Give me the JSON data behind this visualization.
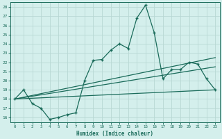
{
  "xlabel": "Humidex (Indice chaleur)",
  "xlim": [
    -0.5,
    23.5
  ],
  "ylim": [
    15.5,
    28.5
  ],
  "yticks": [
    16,
    17,
    18,
    19,
    20,
    21,
    22,
    23,
    24,
    25,
    26,
    27,
    28
  ],
  "xticks": [
    0,
    1,
    2,
    3,
    4,
    5,
    6,
    7,
    8,
    9,
    10,
    11,
    12,
    13,
    14,
    15,
    16,
    17,
    18,
    19,
    20,
    21,
    22,
    23
  ],
  "bg_color": "#d4efec",
  "line_color": "#1a6b5a",
  "grid_color": "#b8d8d4",
  "series_main": {
    "x": [
      0,
      1,
      2,
      3,
      4,
      5,
      6,
      7,
      8,
      9,
      10,
      11,
      12,
      13,
      14,
      15,
      16,
      17,
      18,
      19,
      20,
      21,
      22,
      23
    ],
    "y": [
      18.0,
      19.0,
      17.5,
      17.0,
      15.8,
      16.0,
      16.3,
      16.5,
      20.0,
      22.2,
      22.3,
      23.3,
      24.0,
      23.5,
      26.8,
      28.2,
      25.2,
      20.2,
      21.2,
      21.2,
      22.0,
      21.8,
      20.2,
      19.0
    ]
  },
  "series_line1": {
    "x": [
      0,
      23
    ],
    "y": [
      18.0,
      19.0
    ]
  },
  "series_line2": {
    "x": [
      0,
      23
    ],
    "y": [
      18.0,
      21.5
    ]
  },
  "series_line3": {
    "x": [
      0,
      23
    ],
    "y": [
      18.0,
      22.5
    ]
  }
}
